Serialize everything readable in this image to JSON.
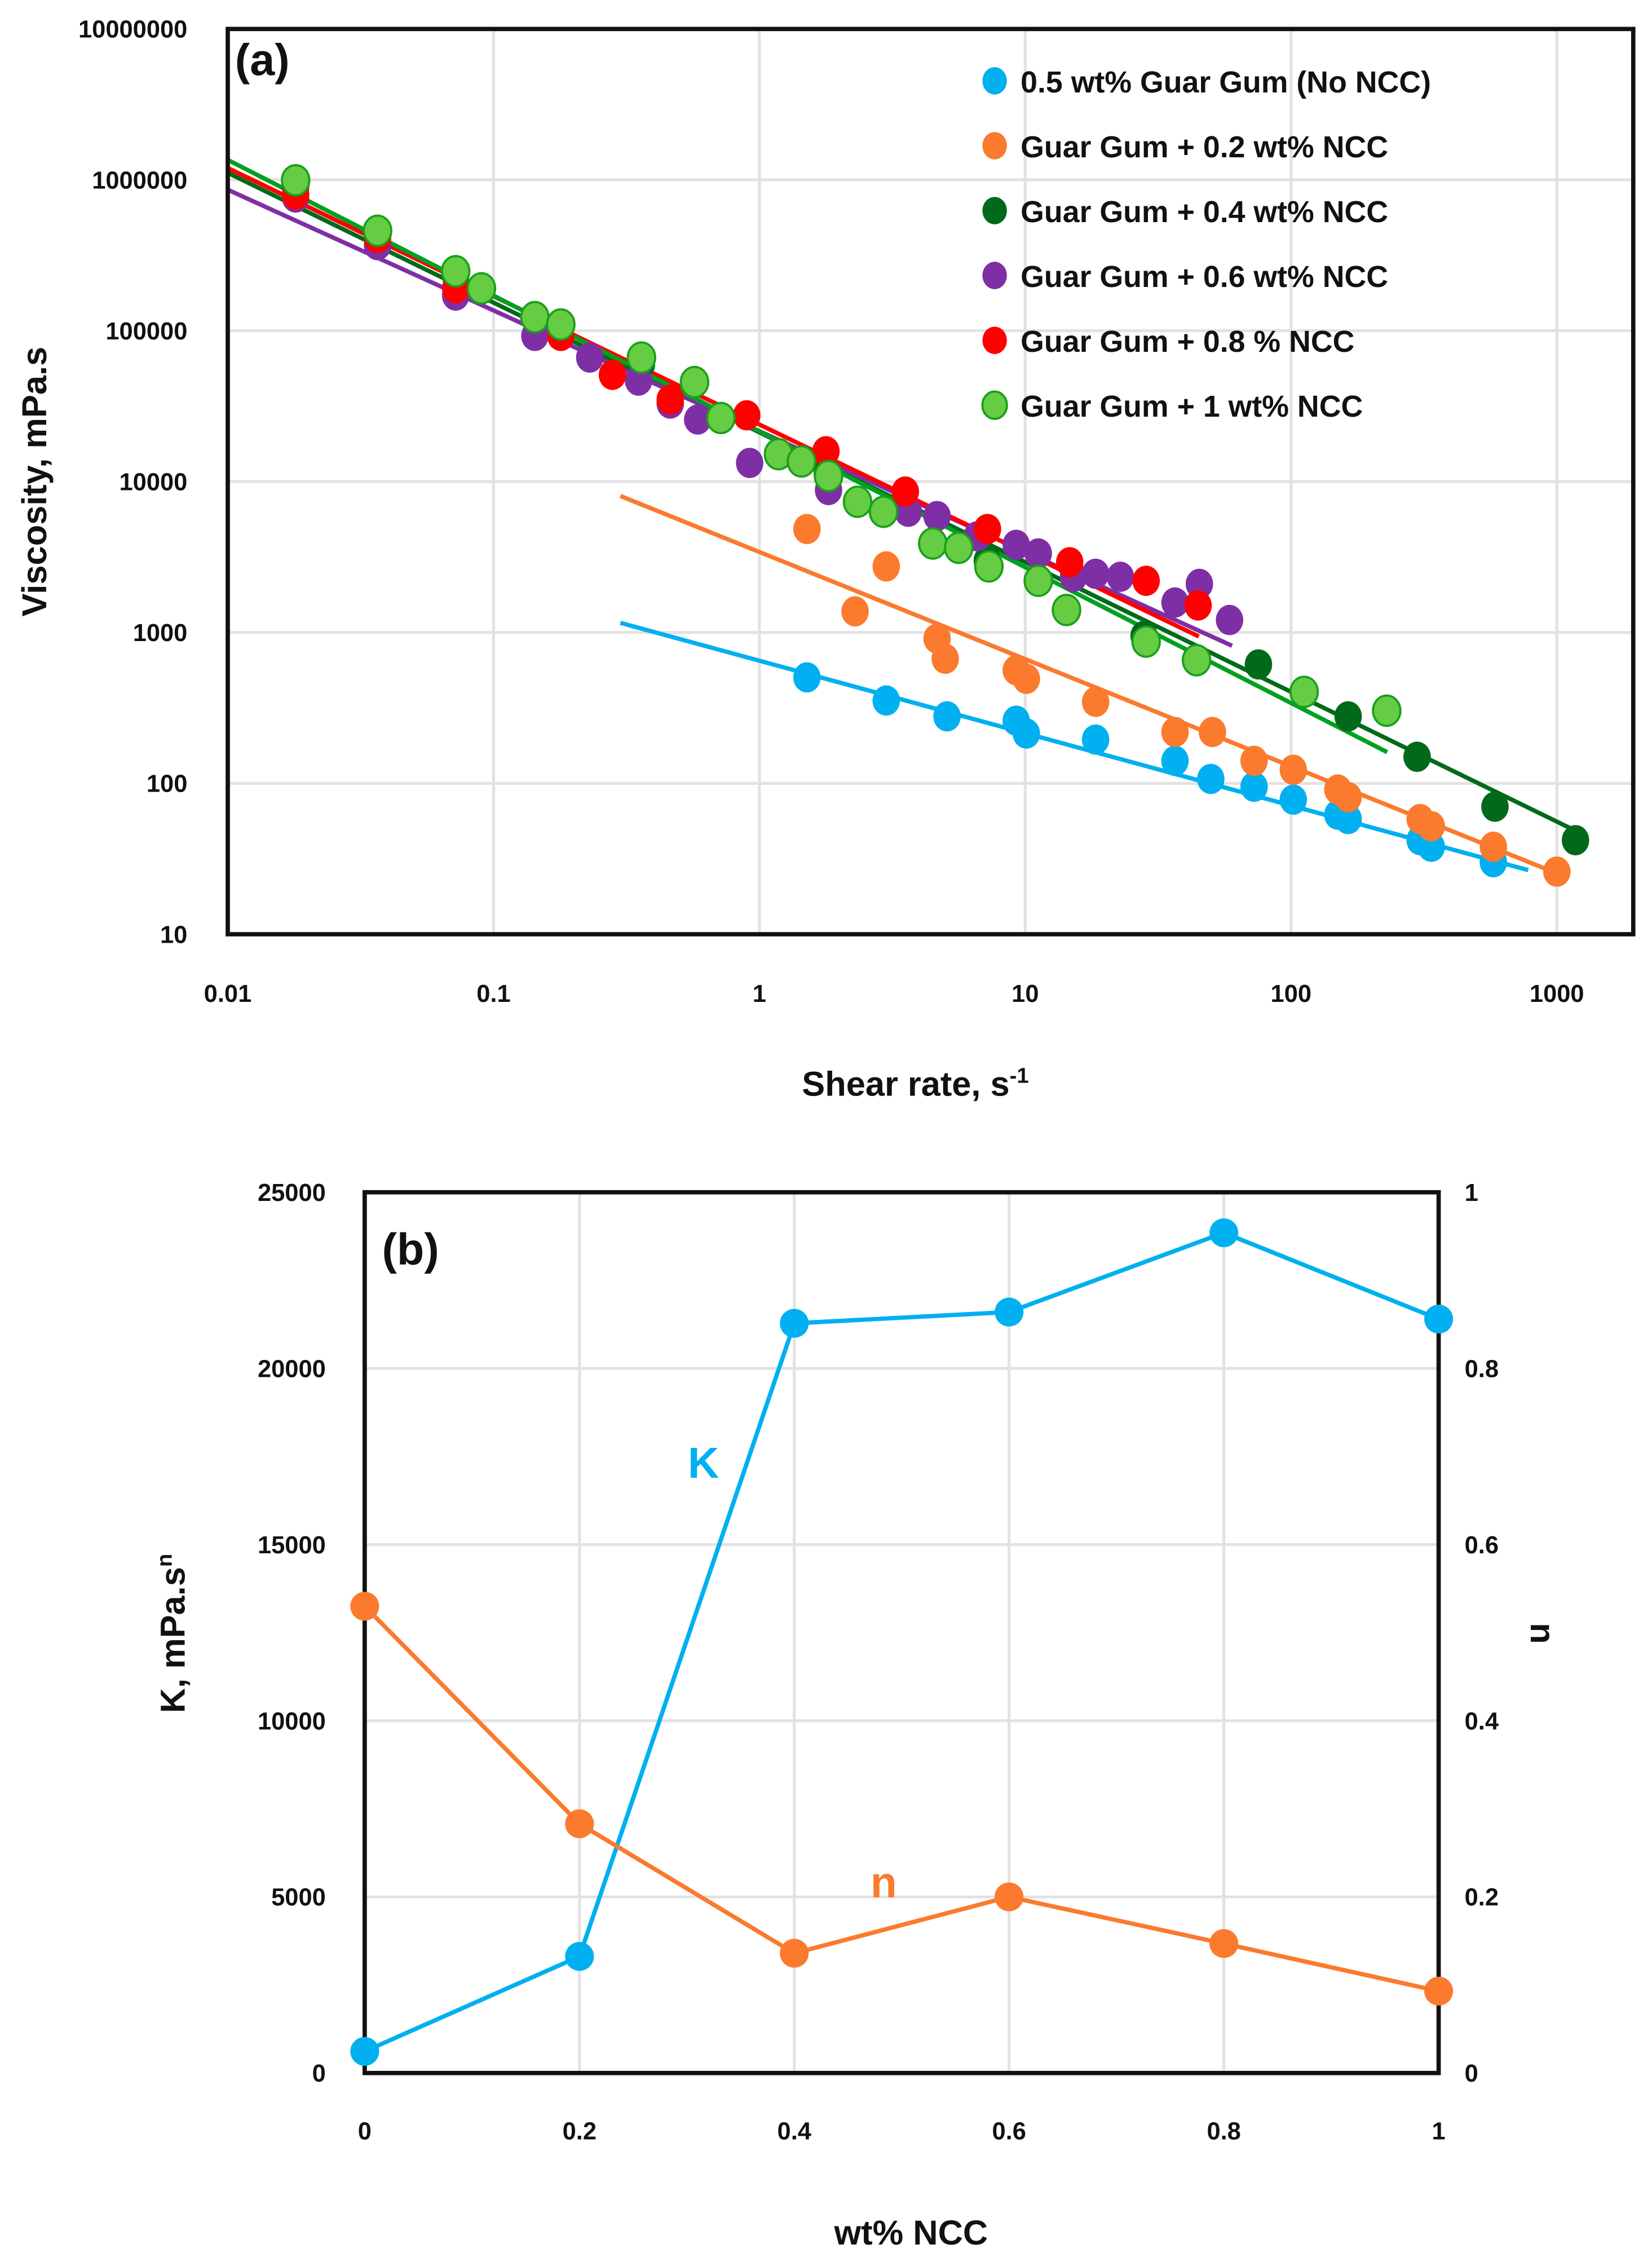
{
  "chart_data": [
    {
      "type": "scatter",
      "panel_label": "(a)",
      "xlabel": "Shear rate, s",
      "xlabel_sup": "-1",
      "ylabel": "Viscosity, mPa.s",
      "xscale": "log",
      "yscale": "log",
      "xlim": [
        0.01,
        1000
      ],
      "ylim": [
        10,
        10000000
      ],
      "xticks": [
        "0.01",
        "0.1",
        "1",
        "10",
        "100",
        "1000"
      ],
      "yticks": [
        "10",
        "100",
        "1000",
        "10000",
        "100000",
        "1000000",
        "10000000"
      ],
      "grid": true,
      "legend_position": "top-right",
      "series": [
        {
          "name": "0.5 wt% Guar Gum (No NCC)",
          "color": "#00b0f0",
          "fit": {
            "K": 650,
            "n": 0.52,
            "xrange": [
              0.3,
              780
            ]
          },
          "x": [
            1.51,
            3.0,
            5.08,
            9.25,
            10.1,
            18.4,
            36.6,
            49.9,
            72.6,
            102,
            150,
            164,
            306,
            337,
            577
          ],
          "y": [
            504,
            354,
            278,
            260,
            214,
            195,
            141,
            107,
            95,
            78,
            62,
            58,
            42,
            38,
            30
          ]
        },
        {
          "name": "Guar Gum + 0.2 wt% NCC",
          "color": "#fb7a2e",
          "fit": {
            "K": 3415,
            "n": 0.29,
            "xrange": [
              0.3,
              1000
            ]
          },
          "x": [
            1.51,
            2.29,
            3.0,
            4.66,
            5.0,
            9.25,
            10.1,
            18.4,
            36.6,
            50.6,
            72.6,
            102,
            150,
            164,
            306,
            337,
            577,
            1000
          ],
          "y": [
            4850,
            1380,
            2740,
            912,
            670,
            562,
            493,
            347,
            219,
            219,
            141,
            123,
            91,
            81,
            58,
            52,
            38,
            26
          ]
        },
        {
          "name": "Guar Gum + 0.4 wt% NCC",
          "color": "#006a1a",
          "fit": {
            "K": 21200,
            "n": 0.14,
            "xrange": [
              0.01,
              1200
            ]
          },
          "x": [
            0.018,
            0.072,
            0.36,
            1.8,
            7.2,
            28,
            75.4,
            164,
            298,
            585,
            1175
          ],
          "y": [
            900000,
            230000,
            60000,
            11500,
            3000,
            950,
            614,
            278,
            150,
            70,
            42
          ]
        },
        {
          "name": "Guar Gum + 0.6 wt% NCC",
          "color": "#7f2fa5",
          "fit": {
            "K": 21600,
            "n": 0.2,
            "xrange": [
              0.01,
              60
            ]
          },
          "x": [
            0.018,
            0.0366,
            0.072,
            0.143,
            0.23,
            0.351,
            0.462,
            0.586,
            0.919,
            1.82,
            3.63,
            4.66,
            6.6,
            9.25,
            11.2,
            15.2,
            18.4,
            22.8,
            36.6,
            45.2,
            58.7
          ],
          "y": [
            764000,
            369000,
            171000,
            92400,
            66400,
            46700,
            32900,
            25800,
            13300,
            8790,
            6310,
            5910,
            4340,
            3810,
            3340,
            2340,
            2450,
            2340,
            1580,
            2100,
            1210
          ]
        },
        {
          "name": "Guar Gum + 0.8 % NCC",
          "color": "#ff0000",
          "fit": {
            "K": 23900,
            "n": 0.15,
            "xrange": [
              0.01,
              45
            ]
          },
          "x": [
            0.018,
            0.0366,
            0.072,
            0.179,
            0.28,
            0.462,
            0.896,
            1.78,
            3.54,
            7.21,
            14.7,
            28.5,
            44.7
          ],
          "y": [
            798000,
            412000,
            191000,
            92400,
            51000,
            35000,
            27500,
            15900,
            8590,
            4850,
            2920,
            2200,
            1510
          ]
        },
        {
          "name": "Guar Gum + 1 wt% NCC",
          "color": "#66cc44",
          "fit": {
            "K": 21500,
            "n": 0.1,
            "xrange": [
              0.01,
              230
            ]
          },
          "x": [
            0.018,
            0.0366,
            0.072,
            0.09,
            0.143,
            0.179,
            0.36,
            0.57,
            0.716,
            1.18,
            1.44,
            1.82,
            2.34,
            2.93,
            4.49,
            5.62,
            7.3,
            11.2,
            14.3,
            28.5,
            44.1,
            112,
            229
          ],
          "y": [
            993000,
            460000,
            248000,
            191000,
            123000,
            110000,
            66400,
            45700,
            26400,
            15200,
            13600,
            10900,
            7350,
            6310,
            3890,
            3640,
            2740,
            2200,
            1410,
            870,
            655,
            404,
            303
          ]
        }
      ]
    },
    {
      "type": "line",
      "panel_label": "(b)",
      "xlabel": "wt% NCC",
      "ylabel": "K, mPa.s",
      "ylabel_sup": "n",
      "y2label": "n",
      "xlim": [
        0,
        1
      ],
      "ylim": [
        0,
        25000
      ],
      "y2lim": [
        0,
        1
      ],
      "xticks": [
        "0",
        "0.2",
        "0.4",
        "0.6",
        "0.8",
        "1"
      ],
      "yticks": [
        "0",
        "5000",
        "10000",
        "15000",
        "20000",
        "25000"
      ],
      "y2ticks": [
        "0",
        "0.2",
        "0.4",
        "0.6",
        "0.8",
        "1"
      ],
      "grid": true,
      "x": [
        0,
        0.2,
        0.4,
        0.6,
        0.8,
        1
      ],
      "series": [
        {
          "name": "K",
          "axis": "left",
          "color": "#00b0f0",
          "values": [
            614,
            3310,
            21280,
            21600,
            23850,
            21400
          ]
        },
        {
          "name": "n",
          "axis": "right",
          "color": "#fb7a2e",
          "values": [
            0.53,
            0.283,
            0.136,
            0.2,
            0.147,
            0.093
          ]
        }
      ],
      "annotations": [
        "K",
        "n"
      ]
    }
  ]
}
